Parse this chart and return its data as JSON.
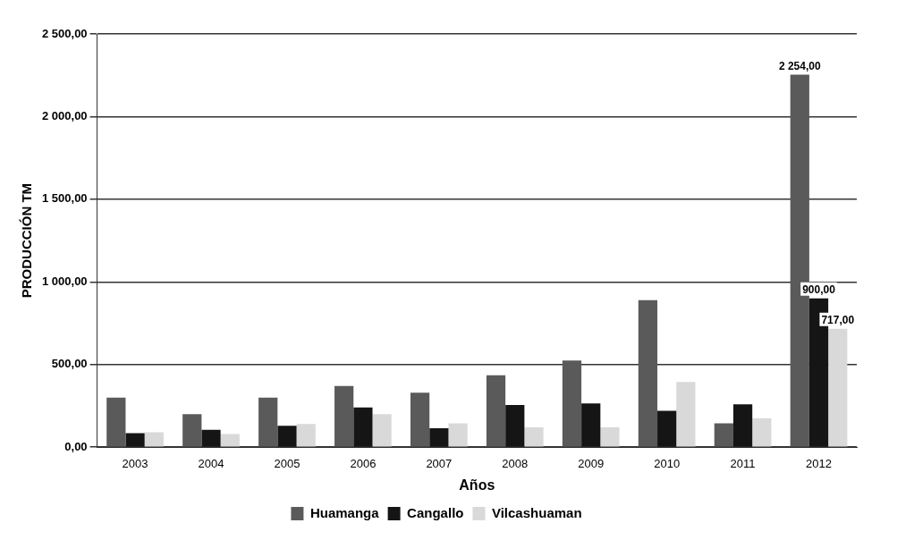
{
  "chart_data": {
    "type": "bar",
    "xlabel": "Años",
    "ylabel": "PRODUCCIÓN TM",
    "categories": [
      "2003",
      "2004",
      "2005",
      "2006",
      "2007",
      "2008",
      "2009",
      "2010",
      "2011",
      "2012"
    ],
    "series": [
      {
        "name": "Huamanga",
        "color": "#5a5a5a",
        "values": [
          300,
          200,
          300,
          370,
          330,
          435,
          525,
          890,
          145,
          2254
        ],
        "value_labels": [
          null,
          null,
          null,
          null,
          null,
          null,
          null,
          null,
          null,
          "2 254,00"
        ]
      },
      {
        "name": "Cangallo",
        "color": "#151515",
        "values": [
          85,
          105,
          130,
          240,
          115,
          255,
          265,
          220,
          260,
          900
        ],
        "value_labels": [
          null,
          null,
          null,
          null,
          null,
          null,
          null,
          null,
          null,
          "900,00"
        ]
      },
      {
        "name": "Vilcashuaman",
        "color": "#d9d9d9",
        "values": [
          90,
          80,
          140,
          200,
          145,
          120,
          120,
          395,
          175,
          717
        ],
        "value_labels": [
          null,
          null,
          null,
          null,
          null,
          null,
          null,
          null,
          null,
          "717,00"
        ]
      }
    ],
    "ylim": [
      0,
      2500
    ],
    "yticks": [
      {
        "value": 0,
        "label": "0,00"
      },
      {
        "value": 500,
        "label": "500,00"
      },
      {
        "value": 1000,
        "label": "1 000,00"
      },
      {
        "value": 1500,
        "label": "1 500,00"
      },
      {
        "value": 2000,
        "label": "2 000,00"
      },
      {
        "value": 2500,
        "label": "2 500,00"
      }
    ],
    "grid": "y",
    "legend": "bottom"
  }
}
